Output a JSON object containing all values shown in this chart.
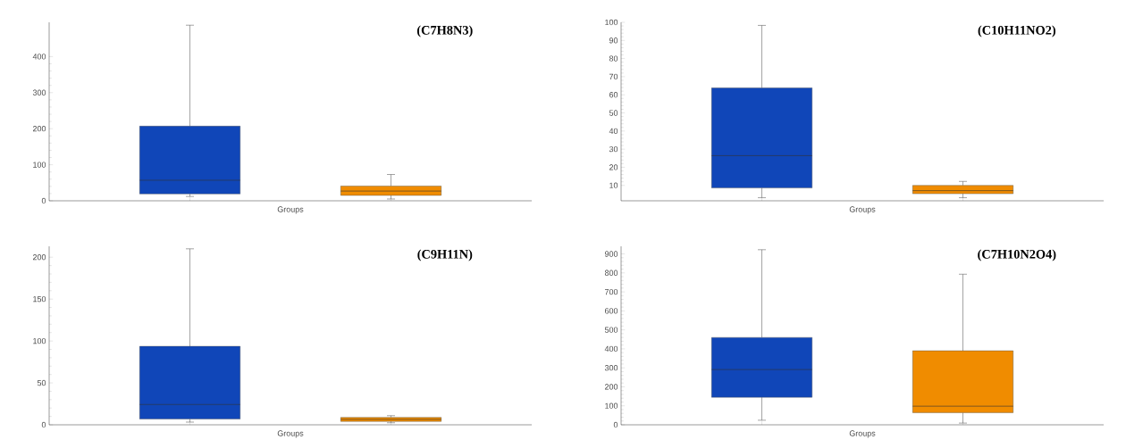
{
  "chart_data": [
    {
      "type": "box",
      "title": "(C7H8N3)",
      "xlabel": "Groups",
      "categories": [
        null,
        null
      ],
      "colors": [
        "#1046b8",
        "#f08c00"
      ],
      "ylim": [
        0,
        495
      ],
      "yticks": [
        0,
        100,
        200,
        300,
        400
      ],
      "boxes": [
        {
          "low": 12,
          "q1": 19,
          "median": 57,
          "q3": 207,
          "high": 487
        },
        {
          "low": 5,
          "q1": 15,
          "median": 27,
          "q3": 41,
          "high": 73
        }
      ]
    },
    {
      "type": "box",
      "title": "(C10H11NO2)",
      "xlabel": "Groups",
      "categories": [
        null,
        null
      ],
      "colors": [
        "#1046b8",
        "#f08c00"
      ],
      "ylim": [
        1.5,
        100
      ],
      "yticks": [
        10,
        20,
        30,
        40,
        50,
        60,
        70,
        80,
        90,
        100
      ],
      "boxes": [
        {
          "low": 3.2,
          "q1": 8.6,
          "median": 26.4,
          "q3": 63.8,
          "high": 98.3
        },
        {
          "low": 3.2,
          "q1": 5.4,
          "median": 7.1,
          "q3": 10,
          "high": 12.2
        }
      ]
    },
    {
      "type": "box",
      "title": "(C9H11N)",
      "xlabel": "Groups",
      "categories": [
        null,
        null
      ],
      "colors": [
        "#1046b8",
        "#f08c00"
      ],
      "ylim": [
        0,
        213
      ],
      "yticks": [
        0,
        50,
        100,
        150,
        200
      ],
      "boxes": [
        {
          "low": 3.2,
          "q1": 6.9,
          "median": 24.2,
          "q3": 93.7,
          "high": 210
        },
        {
          "low": 2.4,
          "q1": 4,
          "median": 6.5,
          "q3": 8.9,
          "high": 10.9
        }
      ]
    },
    {
      "type": "box",
      "title": "(C7H10N2O4)",
      "xlabel": "Groups",
      "categories": [
        null,
        null
      ],
      "colors": [
        "#1046b8",
        "#f08c00"
      ],
      "ylim": [
        0,
        940
      ],
      "yticks": [
        0,
        100,
        200,
        300,
        400,
        500,
        600,
        700,
        800,
        900
      ],
      "boxes": [
        {
          "low": 24,
          "q1": 145,
          "median": 291,
          "q3": 460,
          "high": 922
        },
        {
          "low": 9,
          "q1": 64,
          "median": 98,
          "q3": 390,
          "high": 793
        }
      ]
    }
  ]
}
